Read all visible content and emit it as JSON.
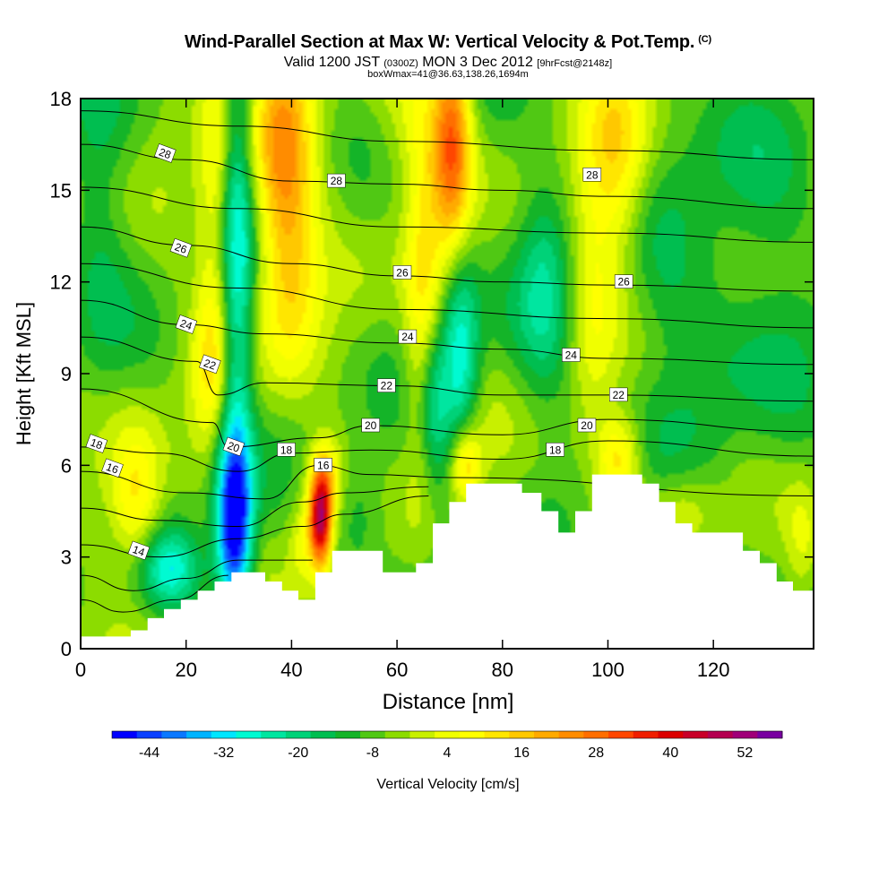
{
  "title": "Wind-Parallel Section at Max W: Vertical Velocity & Pot.Temp.",
  "title_mark": "(C)",
  "subtitle": {
    "part1": "Valid 1200 JST ",
    "part2": "(0300Z)",
    "part3": " MON 3 Dec 2012 ",
    "part4": "[9hrFcst@2148z]"
  },
  "subline": "boxWmax=41@36.63,138.26,1694m",
  "chart_data": {
    "type": "heatmap",
    "xlabel": "Distance [nm]",
    "ylabel": "Height [Kft MSL]",
    "x_range": [
      0,
      139
    ],
    "y_range": [
      0,
      18
    ],
    "x_ticks": [
      0,
      20,
      40,
      60,
      80,
      100,
      120
    ],
    "y_ticks": [
      0,
      3,
      6,
      9,
      12,
      15,
      18
    ],
    "colorbar": {
      "label": "Vertical Velocity [cm/s]",
      "tick_labels": [
        "-44",
        "-32",
        "-20",
        "-8",
        "4",
        "16",
        "28",
        "40",
        "52"
      ],
      "min": -50,
      "max": 58,
      "step": 4,
      "colors": [
        "#0000ff",
        "#0a40ff",
        "#0a78ff",
        "#00b4ff",
        "#00e6ff",
        "#00fad2",
        "#00e6a0",
        "#00d278",
        "#00be50",
        "#14b428",
        "#50c814",
        "#8cdc00",
        "#c8f000",
        "#f0ff00",
        "#ffff00",
        "#ffe600",
        "#ffc800",
        "#ffaa00",
        "#ff8c00",
        "#ff6e00",
        "#ff4600",
        "#f01e00",
        "#dc0000",
        "#c80028",
        "#b40050",
        "#a00078",
        "#7800a0"
      ]
    },
    "terrain_kft": [
      [
        0,
        0.4
      ],
      [
        9.5,
        0.4
      ],
      [
        9.5,
        0.6
      ],
      [
        12.7,
        0.6
      ],
      [
        12.7,
        1.0
      ],
      [
        15.8,
        1.0
      ],
      [
        15.8,
        1.3
      ],
      [
        19,
        1.3
      ],
      [
        19,
        1.6
      ],
      [
        22.2,
        1.6
      ],
      [
        22.2,
        1.9
      ],
      [
        25.4,
        1.9
      ],
      [
        25.4,
        2.2
      ],
      [
        28.6,
        2.2
      ],
      [
        28.6,
        2.5
      ],
      [
        35,
        2.5
      ],
      [
        35,
        2.2
      ],
      [
        38.2,
        2.2
      ],
      [
        38.2,
        1.9
      ],
      [
        41.3,
        1.9
      ],
      [
        41.3,
        1.6
      ],
      [
        44.5,
        1.6
      ],
      [
        44.5,
        2.5
      ],
      [
        47.7,
        2.5
      ],
      [
        47.7,
        3.2
      ],
      [
        57.3,
        3.2
      ],
      [
        57.3,
        2.5
      ],
      [
        63.6,
        2.5
      ],
      [
        63.6,
        2.8
      ],
      [
        66.8,
        2.8
      ],
      [
        66.8,
        4.1
      ],
      [
        69.9,
        4.1
      ],
      [
        69.9,
        4.8
      ],
      [
        73.1,
        4.8
      ],
      [
        73.1,
        5.4
      ],
      [
        83.7,
        5.4
      ],
      [
        83.7,
        5.1
      ],
      [
        87.4,
        5.1
      ],
      [
        87.4,
        4.5
      ],
      [
        90.6,
        4.5
      ],
      [
        90.6,
        3.8
      ],
      [
        93.8,
        3.8
      ],
      [
        93.8,
        4.5
      ],
      [
        97,
        4.5
      ],
      [
        97,
        5.7
      ],
      [
        106.5,
        5.7
      ],
      [
        106.5,
        5.4
      ],
      [
        109.7,
        5.4
      ],
      [
        109.7,
        4.8
      ],
      [
        112.8,
        4.8
      ],
      [
        112.8,
        4.1
      ],
      [
        116,
        4.1
      ],
      [
        116,
        3.8
      ],
      [
        125.6,
        3.8
      ],
      [
        125.6,
        3.2
      ],
      [
        128.8,
        3.2
      ],
      [
        128.8,
        2.8
      ],
      [
        132,
        2.8
      ],
      [
        132,
        2.2
      ],
      [
        135.1,
        2.2
      ],
      [
        135.1,
        1.9
      ],
      [
        139,
        1.9
      ],
      [
        139,
        0
      ],
      [
        0,
        0
      ]
    ],
    "features": [
      {
        "kind": "updraft",
        "x": 45.5,
        "y": 4.2,
        "sx": 1.5,
        "sy": 1.1,
        "value": 52
      },
      {
        "kind": "updraft",
        "x": 46.5,
        "y": 5.6,
        "sx": 2.2,
        "sy": 0.9,
        "value": 18
      },
      {
        "kind": "updraft",
        "x": 42.0,
        "y": 3.6,
        "sx": 2.0,
        "sy": 1.2,
        "value": 10
      },
      {
        "kind": "updraft",
        "x": 10.5,
        "y": 4.8,
        "sx": 3.5,
        "sy": 1.6,
        "value": 18
      },
      {
        "kind": "updraft",
        "x": 24.5,
        "y": 9.0,
        "sx": 2.5,
        "sy": 1.8,
        "value": 12
      },
      {
        "kind": "updraft",
        "x": 26.0,
        "y": 15.0,
        "sx": 2.5,
        "sy": 4.0,
        "value": 14
      },
      {
        "kind": "updraft",
        "x": 38.5,
        "y": 16.0,
        "sx": 4.0,
        "sy": 3.0,
        "value": 28
      },
      {
        "kind": "updraft",
        "x": 40.0,
        "y": 11.5,
        "sx": 4.0,
        "sy": 2.0,
        "value": 12
      },
      {
        "kind": "updraft",
        "x": 70.5,
        "y": 16.5,
        "sx": 2.5,
        "sy": 2.5,
        "value": 32
      },
      {
        "kind": "updraft",
        "x": 65.0,
        "y": 11.0,
        "sx": 2.5,
        "sy": 4.0,
        "value": 16
      },
      {
        "kind": "updraft",
        "x": 73.0,
        "y": 6.0,
        "sx": 2.0,
        "sy": 1.0,
        "value": 22
      },
      {
        "kind": "updraft",
        "x": 101.5,
        "y": 16.0,
        "sx": 4.5,
        "sy": 3.0,
        "value": 22
      },
      {
        "kind": "updraft",
        "x": 97.0,
        "y": 11.0,
        "sx": 3.0,
        "sy": 3.0,
        "value": 8
      },
      {
        "kind": "updraft",
        "x": 102.0,
        "y": 6.2,
        "sx": 3.0,
        "sy": 1.0,
        "value": 20
      },
      {
        "kind": "updraft",
        "x": 114.0,
        "y": 4.5,
        "sx": 5.0,
        "sy": 1.0,
        "value": 12
      },
      {
        "kind": "updraft",
        "x": 137.0,
        "y": 3.5,
        "sx": 2.5,
        "sy": 1.5,
        "value": 10
      },
      {
        "kind": "updraft",
        "x": 63.0,
        "y": 17.0,
        "sx": 6.0,
        "sy": 2.0,
        "value": 8
      },
      {
        "kind": "downdraft",
        "x": 29.0,
        "y": 4.0,
        "sx": 2.5,
        "sy": 2.0,
        "value": -42
      },
      {
        "kind": "downdraft",
        "x": 29.5,
        "y": 12.0,
        "sx": 2.2,
        "sy": 6.0,
        "value": -24
      },
      {
        "kind": "downdraft",
        "x": 17.0,
        "y": 2.6,
        "sx": 4.0,
        "sy": 0.9,
        "value": -20
      },
      {
        "kind": "downdraft",
        "x": 72.0,
        "y": 9.5,
        "sx": 2.5,
        "sy": 2.5,
        "value": -24
      },
      {
        "kind": "downdraft",
        "x": 67.0,
        "y": 8.0,
        "sx": 2.0,
        "sy": 2.0,
        "value": -18
      },
      {
        "kind": "downdraft",
        "x": 88.0,
        "y": 12.0,
        "sx": 3.5,
        "sy": 2.5,
        "value": -14
      },
      {
        "kind": "downdraft",
        "x": 53.0,
        "y": 4.5,
        "sx": 4.0,
        "sy": 1.5,
        "value": -10
      },
      {
        "kind": "downdraft",
        "x": 3.0,
        "y": 14.0,
        "sx": 4.0,
        "sy": 4.0,
        "value": -8
      },
      {
        "kind": "downdraft",
        "x": 120.0,
        "y": 12.0,
        "sx": 15.0,
        "sy": 6.0,
        "value": -8
      }
    ],
    "theta_contours": [
      {
        "label": "28",
        "points": [
          [
            0,
            16.5
          ],
          [
            20,
            16
          ],
          [
            40,
            15.3
          ],
          [
            60,
            15.2
          ],
          [
            80,
            15
          ],
          [
            100,
            14.8
          ],
          [
            139,
            14.4
          ]
        ],
        "label_at": [
          [
            16,
            16.2
          ],
          [
            48.5,
            15.3
          ],
          [
            97,
            15.5
          ]
        ]
      },
      {
        "label": "26",
        "points": [
          [
            0,
            13.8
          ],
          [
            20,
            13.2
          ],
          [
            40,
            12.6
          ],
          [
            60,
            12.2
          ],
          [
            80,
            12
          ],
          [
            100,
            11.9
          ],
          [
            139,
            11.7
          ]
        ],
        "label_at": [
          [
            19,
            13.1
          ],
          [
            61,
            12.3
          ],
          [
            103,
            12
          ]
        ]
      },
      {
        "label": "24",
        "points": [
          [
            0,
            11.4
          ],
          [
            20,
            10.6
          ],
          [
            35,
            10.3
          ],
          [
            60,
            10
          ],
          [
            80,
            9.8
          ],
          [
            100,
            9.5
          ],
          [
            139,
            9.3
          ]
        ],
        "label_at": [
          [
            20,
            10.6
          ],
          [
            62,
            10.2
          ],
          [
            93,
            9.6
          ]
        ]
      },
      {
        "label": "22",
        "points": [
          [
            0,
            10.2
          ],
          [
            22,
            9.4
          ],
          [
            26,
            8.3
          ],
          [
            35,
            8.7
          ],
          [
            60,
            8.6
          ],
          [
            80,
            8.3
          ],
          [
            100,
            8.3
          ],
          [
            139,
            8.1
          ]
        ],
        "label_at": [
          [
            24.5,
            9.3
          ],
          [
            58,
            8.6
          ],
          [
            102,
            8.3
          ]
        ]
      },
      {
        "label": "20",
        "points": [
          [
            0,
            8.5
          ],
          [
            25,
            7.4
          ],
          [
            28,
            6.6
          ],
          [
            45,
            6.9
          ],
          [
            55,
            7.3
          ],
          [
            80,
            7.0
          ],
          [
            100,
            7.5
          ],
          [
            139,
            7.1
          ]
        ],
        "label_at": [
          [
            29,
            6.6
          ],
          [
            55,
            7.3
          ],
          [
            96,
            7.3
          ]
        ]
      },
      {
        "label": "18",
        "points": [
          [
            0,
            6.6
          ],
          [
            15,
            6.4
          ],
          [
            30,
            5.8
          ],
          [
            40,
            6.4
          ],
          [
            55,
            6.5
          ],
          [
            80,
            6.2
          ],
          [
            100,
            6.8
          ],
          [
            139,
            6.3
          ]
        ],
        "label_at": [
          [
            3,
            6.7
          ],
          [
            39,
            6.5
          ],
          [
            90,
            6.5
          ]
        ]
      },
      {
        "label": "16",
        "points": [
          [
            0,
            5.8
          ],
          [
            20,
            5.1
          ],
          [
            35,
            4.9
          ],
          [
            45,
            6.0
          ],
          [
            55,
            5.7
          ],
          [
            70,
            5.6
          ],
          [
            139,
            5.0
          ]
        ],
        "label_at": [
          [
            6,
            5.9
          ],
          [
            46,
            6.0
          ]
        ]
      },
      {
        "label": "14",
        "points": [
          [
            0,
            3.4
          ],
          [
            15,
            3.0
          ],
          [
            30,
            3.6
          ],
          [
            42,
            4.0
          ],
          [
            50,
            4.4
          ],
          [
            66,
            5.0
          ]
        ],
        "label_at": [
          [
            11,
            3.2
          ]
        ]
      },
      {
        "label": "",
        "points": [
          [
            0,
            17.6
          ],
          [
            30,
            17.1
          ],
          [
            60,
            16.6
          ],
          [
            100,
            16.3
          ],
          [
            139,
            16.0
          ]
        ]
      },
      {
        "label": "",
        "points": [
          [
            0,
            15.1
          ],
          [
            30,
            14.4
          ],
          [
            60,
            13.8
          ],
          [
            100,
            13.6
          ],
          [
            139,
            13.3
          ]
        ]
      },
      {
        "label": "",
        "points": [
          [
            0,
            12.6
          ],
          [
            30,
            11.8
          ],
          [
            60,
            11.1
          ],
          [
            100,
            10.8
          ],
          [
            139,
            10.5
          ]
        ]
      },
      {
        "label": "",
        "points": [
          [
            0,
            4.6
          ],
          [
            15,
            4.2
          ],
          [
            30,
            4.0
          ],
          [
            42,
            4.8
          ],
          [
            50,
            5.1
          ],
          [
            66,
            5.3
          ]
        ]
      },
      {
        "label": "",
        "points": [
          [
            0,
            2.4
          ],
          [
            10,
            1.9
          ],
          [
            20,
            2.3
          ],
          [
            30,
            2.9
          ],
          [
            44,
            2.9
          ]
        ]
      },
      {
        "label": "",
        "points": [
          [
            0,
            1.6
          ],
          [
            8,
            1.2
          ],
          [
            18,
            1.6
          ],
          [
            28,
            2.4
          ]
        ]
      }
    ]
  }
}
